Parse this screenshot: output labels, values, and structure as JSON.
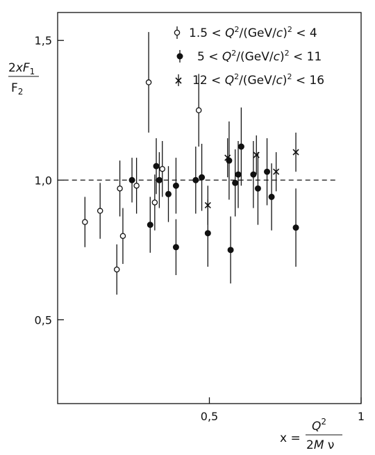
{
  "chart_data": {
    "type": "scatter",
    "title": "",
    "xlabel": "x = Q²/2Mν",
    "ylabel": "2xF₁/F₂",
    "xlim": [
      0,
      1.0
    ],
    "ylim": [
      0.2,
      1.6
    ],
    "x_ticks": [
      0.5,
      1.0
    ],
    "x_tick_labels": [
      "0,5",
      "1"
    ],
    "y_ticks": [
      0.5,
      1.0,
      1.5
    ],
    "y_tick_labels": [
      "0,5",
      "1,0",
      "1,5"
    ],
    "grid": false,
    "legend": "top-right",
    "reference_line": {
      "y": 1.0,
      "style": "dashed"
    },
    "series": [
      {
        "name": "1.5 < Q²/(GeV/c)² < 4",
        "marker": "open-circle",
        "points": [
          {
            "x": 0.09,
            "y": 0.85,
            "err": 0.09
          },
          {
            "x": 0.14,
            "y": 0.89,
            "err": 0.1
          },
          {
            "x": 0.195,
            "y": 0.68,
            "err": 0.09
          },
          {
            "x": 0.205,
            "y": 0.97,
            "err": 0.1
          },
          {
            "x": 0.215,
            "y": 0.8,
            "err": 0.1
          },
          {
            "x": 0.26,
            "y": 0.98,
            "err": 0.1
          },
          {
            "x": 0.3,
            "y": 1.35,
            "err": 0.18
          },
          {
            "x": 0.32,
            "y": 0.92,
            "err": 0.1
          },
          {
            "x": 0.345,
            "y": 1.04,
            "err": 0.1
          },
          {
            "x": 0.465,
            "y": 1.25,
            "err": 0.13
          }
        ]
      },
      {
        "name": "5 < Q²/(GeV/c)² < 11",
        "marker": "filled-circle",
        "points": [
          {
            "x": 0.245,
            "y": 1.0,
            "err": 0.08
          },
          {
            "x": 0.305,
            "y": 0.84,
            "err": 0.1
          },
          {
            "x": 0.325,
            "y": 1.05,
            "err": 0.1
          },
          {
            "x": 0.335,
            "y": 1.0,
            "err": 0.1
          },
          {
            "x": 0.365,
            "y": 0.95,
            "err": 0.1
          },
          {
            "x": 0.39,
            "y": 0.98,
            "err": 0.1
          },
          {
            "x": 0.39,
            "y": 0.76,
            "err": 0.1
          },
          {
            "x": 0.455,
            "y": 1.0,
            "err": 0.12
          },
          {
            "x": 0.475,
            "y": 1.01,
            "err": 0.12
          },
          {
            "x": 0.495,
            "y": 0.81,
            "err": 0.12
          },
          {
            "x": 0.565,
            "y": 1.07,
            "err": 0.14
          },
          {
            "x": 0.57,
            "y": 0.75,
            "err": 0.12
          },
          {
            "x": 0.585,
            "y": 0.99,
            "err": 0.12
          },
          {
            "x": 0.595,
            "y": 1.02,
            "err": 0.12
          },
          {
            "x": 0.605,
            "y": 1.12,
            "err": 0.14
          },
          {
            "x": 0.645,
            "y": 1.02,
            "err": 0.12
          },
          {
            "x": 0.66,
            "y": 0.97,
            "err": 0.13
          },
          {
            "x": 0.69,
            "y": 1.03,
            "err": 0.12
          },
          {
            "x": 0.705,
            "y": 0.94,
            "err": 0.12
          },
          {
            "x": 0.785,
            "y": 0.83,
            "err": 0.14
          }
        ]
      },
      {
        "name": "12 < Q²/(GeV/c)² < 16",
        "marker": "cross",
        "points": [
          {
            "x": 0.495,
            "y": 0.91,
            "err": 0.07
          },
          {
            "x": 0.56,
            "y": 1.08,
            "err": 0.07
          },
          {
            "x": 0.655,
            "y": 1.09,
            "err": 0.07
          },
          {
            "x": 0.72,
            "y": 1.03,
            "err": 0.07
          },
          {
            "x": 0.785,
            "y": 1.1,
            "err": 0.07
          }
        ]
      }
    ]
  }
}
